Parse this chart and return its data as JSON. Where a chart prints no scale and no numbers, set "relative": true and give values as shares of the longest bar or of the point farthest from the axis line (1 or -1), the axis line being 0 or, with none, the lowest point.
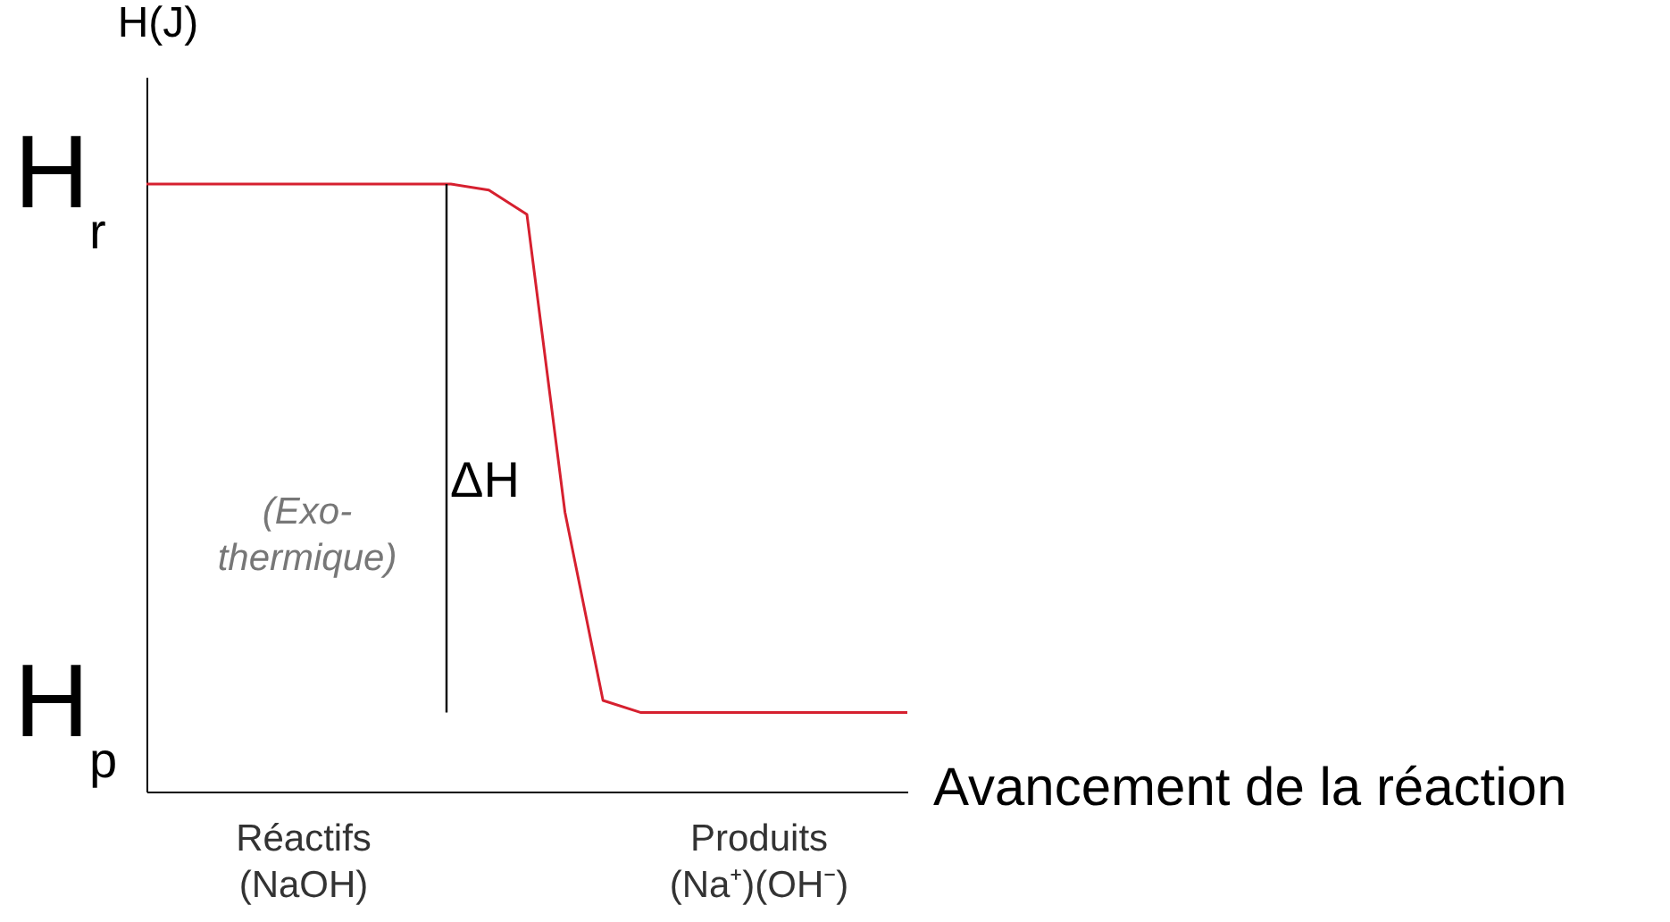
{
  "chart_data": {
    "type": "line",
    "relative": true,
    "tick_labels": false,
    "grid": false,
    "marker": "none",
    "line_style": "solid",
    "xlabel": "Avancement de la réaction",
    "ylabel": "H(J)",
    "categories": [
      null,
      null,
      null,
      null,
      null,
      null,
      null,
      null,
      null,
      null,
      null,
      null,
      null,
      null,
      null,
      null,
      null,
      null,
      null,
      null,
      null
    ],
    "series": [
      {
        "color": "#d6202f",
        "values": [
          1.0,
          1.0,
          1.0,
          1.0,
          1.0,
          1.0,
          1.0,
          1.0,
          1.0,
          0.99,
          0.95,
          0.46,
          0.15,
          0.13,
          0.13,
          0.13,
          0.13,
          0.13,
          0.13,
          0.13,
          0.13
        ]
      }
    ],
    "annotations": [
      "H$_{r}$",
      "H$_{p}$",
      "(Exo-thermique)",
      "ΔH",
      "Réactifs (NaOH)",
      "Produits (Na⁺)(OH⁻)"
    ]
  }
}
